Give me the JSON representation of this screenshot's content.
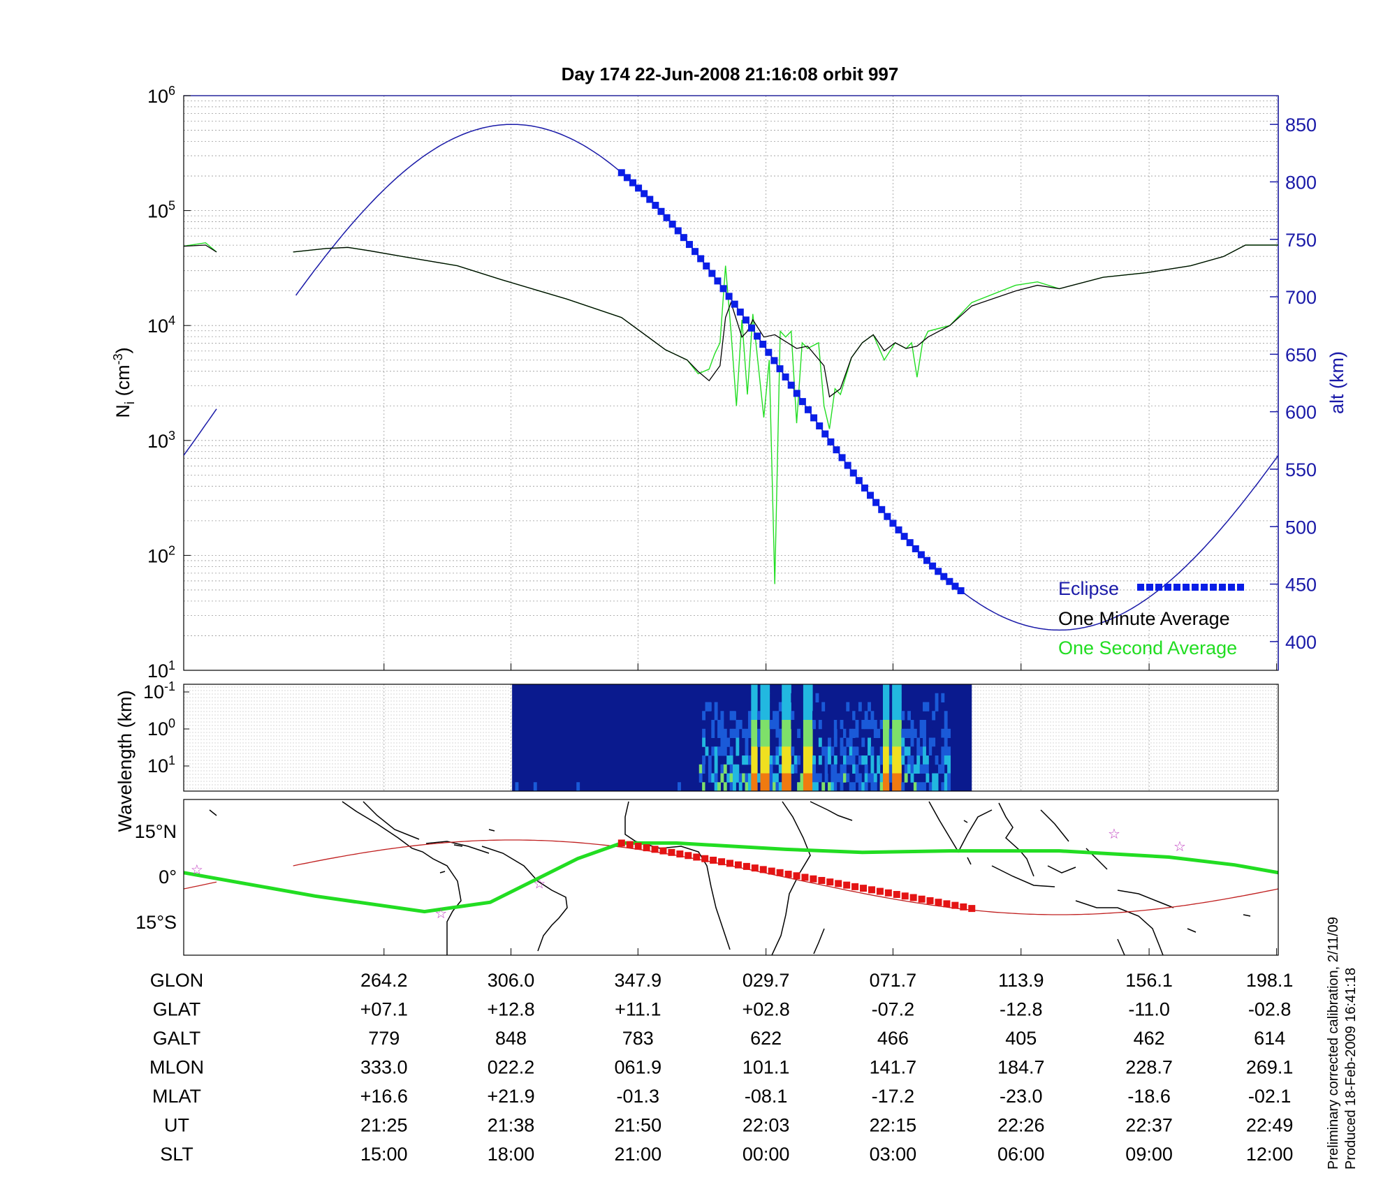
{
  "title": "Day 174  22-Jun-2008 21:16:08   orbit 997",
  "colors": {
    "one_second": "#22dd22",
    "one_minute": "#000000",
    "altitude": "#1a1aa8",
    "eclipse": "#0a1ee6",
    "ground_track": "#22dd22",
    "eclipse_track": "#e41414",
    "dip_equator": "#c02020",
    "stars": "#c040c0"
  },
  "chart_data": [
    {
      "type": "line",
      "name": "density_panel",
      "ylabel": "N",
      "ylabel_sub": "i",
      "ylabel_unit_pre": "(cm",
      "ylabel_unit_sup": "-3",
      "ylabel_unit_post": ")",
      "yscale": "log",
      "ylim": [
        10,
        1000000
      ],
      "yticks": [
        {
          "base": "10",
          "exp": "1"
        },
        {
          "base": "10",
          "exp": "2"
        },
        {
          "base": "10",
          "exp": "3"
        },
        {
          "base": "10",
          "exp": "4"
        },
        {
          "base": "10",
          "exp": "5"
        },
        {
          "base": "10",
          "exp": "6"
        }
      ],
      "y2label": "alt (km)",
      "y2lim": [
        375,
        875
      ],
      "y2ticks": [
        "400",
        "450",
        "500",
        "550",
        "600",
        "650",
        "700",
        "750",
        "800",
        "850"
      ],
      "grid": true,
      "legend": {
        "position": "bottom-right",
        "entries": [
          "Eclipse",
          "One Minute Average",
          "One Second Average"
        ]
      },
      "series": [
        {
          "name": "One Minute Average",
          "log10_density": [
            [
              0.0,
              4.69
            ],
            [
              0.02,
              4.7
            ],
            [
              0.03,
              4.64
            ],
            [
              0.1,
              4.64
            ],
            [
              0.13,
              4.67
            ],
            [
              0.15,
              4.68
            ],
            [
              0.17,
              4.65
            ],
            [
              0.2,
              4.6
            ],
            [
              0.25,
              4.52
            ],
            [
              0.29,
              4.4
            ],
            [
              0.35,
              4.23
            ],
            [
              0.4,
              4.07
            ],
            [
              0.42,
              3.93
            ],
            [
              0.44,
              3.79
            ],
            [
              0.46,
              3.7
            ],
            [
              0.47,
              3.6
            ],
            [
              0.48,
              3.52
            ],
            [
              0.49,
              3.65
            ],
            [
              0.495,
              4.07
            ],
            [
              0.5,
              4.2
            ],
            [
              0.51,
              3.9
            ],
            [
              0.515,
              3.95
            ],
            [
              0.52,
              4.05
            ],
            [
              0.53,
              3.9
            ],
            [
              0.54,
              3.92
            ],
            [
              0.55,
              3.86
            ],
            [
              0.56,
              3.8
            ],
            [
              0.57,
              3.82
            ],
            [
              0.585,
              3.65
            ],
            [
              0.59,
              3.38
            ],
            [
              0.6,
              3.45
            ],
            [
              0.61,
              3.72
            ],
            [
              0.62,
              3.85
            ],
            [
              0.63,
              3.92
            ],
            [
              0.64,
              3.78
            ],
            [
              0.65,
              3.85
            ],
            [
              0.66,
              3.8
            ],
            [
              0.67,
              3.82
            ],
            [
              0.68,
              3.9
            ],
            [
              0.7,
              4.0
            ],
            [
              0.72,
              4.17
            ],
            [
              0.76,
              4.3
            ],
            [
              0.78,
              4.35
            ],
            [
              0.8,
              4.32
            ],
            [
              0.84,
              4.42
            ],
            [
              0.88,
              4.46
            ],
            [
              0.92,
              4.52
            ],
            [
              0.95,
              4.6
            ],
            [
              0.97,
              4.7
            ],
            [
              1.0,
              4.7
            ]
          ]
        },
        {
          "name": "One Second Average",
          "log10_density": [
            [
              0.0,
              4.69
            ],
            [
              0.02,
              4.72
            ],
            [
              0.03,
              4.64
            ],
            [
              0.1,
              4.64
            ],
            [
              0.13,
              4.67
            ],
            [
              0.15,
              4.68
            ],
            [
              0.17,
              4.65
            ],
            [
              0.2,
              4.6
            ],
            [
              0.25,
              4.52
            ],
            [
              0.29,
              4.4
            ],
            [
              0.35,
              4.23
            ],
            [
              0.4,
              4.07
            ],
            [
              0.42,
              3.93
            ],
            [
              0.44,
              3.79
            ],
            [
              0.46,
              3.7
            ],
            [
              0.47,
              3.58
            ],
            [
              0.48,
              3.62
            ],
            [
              0.485,
              3.75
            ],
            [
              0.49,
              3.85
            ],
            [
              0.495,
              4.52
            ],
            [
              0.5,
              3.95
            ],
            [
              0.505,
              3.3
            ],
            [
              0.51,
              4.05
            ],
            [
              0.515,
              3.4
            ],
            [
              0.52,
              4.1
            ],
            [
              0.53,
              3.2
            ],
            [
              0.535,
              3.7
            ],
            [
              0.54,
              1.75
            ],
            [
              0.545,
              3.95
            ],
            [
              0.55,
              3.9
            ],
            [
              0.555,
              3.95
            ],
            [
              0.56,
              3.15
            ],
            [
              0.565,
              3.85
            ],
            [
              0.57,
              3.8
            ],
            [
              0.58,
              3.85
            ],
            [
              0.585,
              3.3
            ],
            [
              0.59,
              3.1
            ],
            [
              0.595,
              3.45
            ],
            [
              0.6,
              3.4
            ],
            [
              0.61,
              3.72
            ],
            [
              0.62,
              3.85
            ],
            [
              0.63,
              3.92
            ],
            [
              0.64,
              3.7
            ],
            [
              0.65,
              3.85
            ],
            [
              0.66,
              3.8
            ],
            [
              0.665,
              3.85
            ],
            [
              0.67,
              3.55
            ],
            [
              0.675,
              3.85
            ],
            [
              0.68,
              3.95
            ],
            [
              0.7,
              4.0
            ],
            [
              0.72,
              4.2
            ],
            [
              0.76,
              4.35
            ],
            [
              0.78,
              4.38
            ],
            [
              0.8,
              4.32
            ],
            [
              0.84,
              4.42
            ],
            [
              0.88,
              4.46
            ],
            [
              0.92,
              4.52
            ],
            [
              0.95,
              4.6
            ],
            [
              0.97,
              4.7
            ],
            [
              1.0,
              4.7
            ]
          ]
        },
        {
          "name": "alt (km)",
          "altitude_sine": {
            "mean": 630,
            "amplitude": 220,
            "max_at_fraction": 0.3,
            "period_fraction": 1.0
          }
        }
      ],
      "data_gap_fraction": [
        0.03,
        0.1
      ],
      "eclipse_fraction": [
        0.4,
        0.71
      ]
    },
    {
      "type": "heatmap",
      "name": "wavelength_panel",
      "ylabel": "Wavelength (km)",
      "yticks": [
        {
          "base": "10",
          "exp": "-1"
        },
        {
          "base": "10",
          "exp": "0"
        },
        {
          "base": "10",
          "exp": "1"
        }
      ],
      "data_span_fraction": [
        0.3,
        0.72
      ],
      "colormap": "jet",
      "high_power_columns_fraction": [
        0.52,
        0.53,
        0.55,
        0.57,
        0.64,
        0.65
      ]
    },
    {
      "type": "line",
      "name": "map_panel",
      "yticks": [
        "15°N",
        "0°",
        "15°S"
      ],
      "ylim": [
        -25,
        25
      ],
      "track": [
        [
          0.0,
          1.5
        ],
        [
          0.12,
          -6
        ],
        [
          0.22,
          -11
        ],
        [
          0.28,
          -8
        ],
        [
          0.32,
          -1
        ],
        [
          0.36,
          6
        ],
        [
          0.4,
          11
        ],
        [
          0.45,
          11
        ],
        [
          0.5,
          10
        ],
        [
          0.55,
          9
        ],
        [
          0.62,
          8
        ],
        [
          0.7,
          8.5
        ],
        [
          0.8,
          8.5
        ],
        [
          0.9,
          6.5
        ],
        [
          0.96,
          4
        ],
        [
          1.0,
          1.5
        ]
      ],
      "eclipse_track_fraction": [
        0.4,
        0.72
      ],
      "eclipse_track_lat": [
        11,
        -10
      ],
      "dip_equator": {
        "amplitude": 12,
        "max_at_fraction": 0.3
      },
      "stars": [
        [
          0.012,
          2.5
        ],
        [
          0.235,
          -11.5
        ],
        [
          0.325,
          -2
        ],
        [
          0.85,
          14
        ],
        [
          0.91,
          10
        ]
      ]
    }
  ],
  "table": {
    "rows": [
      {
        "label": "GLON",
        "values": [
          "264.2",
          "306.0",
          "347.9",
          "029.7",
          "071.7",
          "113.9",
          "156.1",
          "198.1"
        ]
      },
      {
        "label": "GLAT",
        "values": [
          "+07.1",
          "+12.8",
          "+11.1",
          "+02.8",
          "-07.2",
          "-12.8",
          "-11.0",
          "-02.8"
        ]
      },
      {
        "label": "GALT",
        "values": [
          "779",
          "848",
          "783",
          "622",
          "466",
          "405",
          "462",
          "614"
        ]
      },
      {
        "label": "MLON",
        "values": [
          "333.0",
          "022.2",
          "061.9",
          "101.1",
          "141.7",
          "184.7",
          "228.7",
          "269.1"
        ]
      },
      {
        "label": "MLAT",
        "values": [
          "+16.6",
          "+21.9",
          "-01.3",
          "-08.1",
          "-17.2",
          "-23.0",
          "-18.6",
          "-02.1"
        ]
      },
      {
        "label": "UT",
        "values": [
          "21:25",
          "21:38",
          "21:50",
          "22:03",
          "22:15",
          "22:26",
          "22:37",
          "22:49"
        ]
      },
      {
        "label": "SLT",
        "values": [
          "15:00",
          "18:00",
          "21:00",
          "00:00",
          "03:00",
          "06:00",
          "09:00",
          "12:00"
        ]
      }
    ]
  },
  "notes": {
    "line1": "Preliminary corrected calibration, 2/11/09",
    "line2": "Produced 18-Feb-2009 16:41:18"
  }
}
